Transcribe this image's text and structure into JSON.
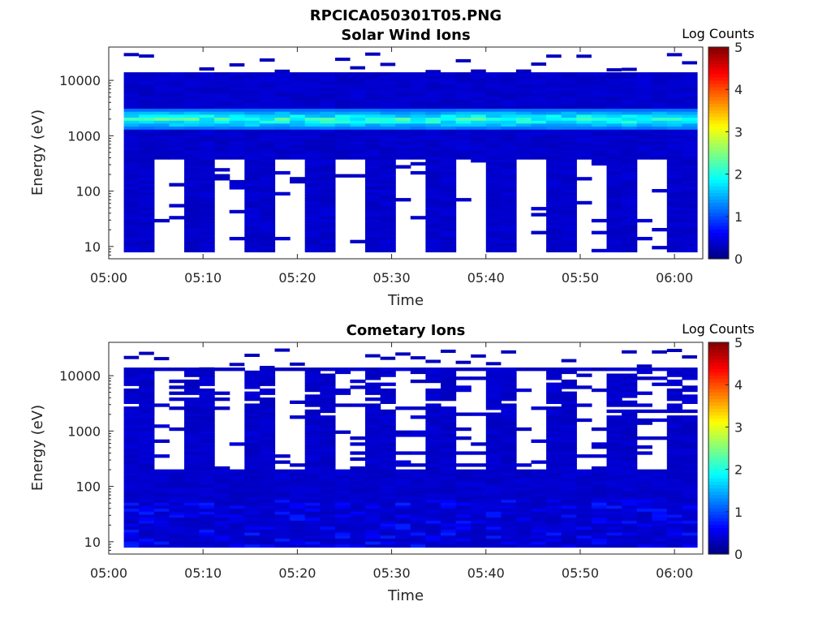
{
  "figure_title": "RPCICA050301T05.PNG",
  "chart_data": [
    {
      "type": "heatmap",
      "title": "Solar Wind Ions",
      "xlabel": "Time",
      "ylabel": "Energy (eV)",
      "y_scale": "log",
      "ylim": [
        6,
        40000
      ],
      "xlim": [
        "05:00",
        "06:03"
      ],
      "x_ticks": [
        "05:00",
        "05:10",
        "05:20",
        "05:30",
        "05:40",
        "05:50",
        "06:00"
      ],
      "y_ticks": [
        "10",
        "100",
        "1000",
        "10000"
      ],
      "colorbar": {
        "label": "Log Counts",
        "min": 0,
        "max": 5,
        "ticks": [
          "0",
          "1",
          "2",
          "3",
          "4",
          "5"
        ],
        "colormap": "jet"
      },
      "background_level": 0.3,
      "peak_energy_eV": 2000,
      "peak_level_range": [
        1.1,
        1.9
      ],
      "low_energy_gap_cycle": "empty bins below ~400 eV on alternating sweeps"
    },
    {
      "type": "heatmap",
      "title": "Cometary Ions",
      "xlabel": "Time",
      "ylabel": "Energy (eV)",
      "y_scale": "log",
      "ylim": [
        6,
        40000
      ],
      "xlim": [
        "05:00",
        "06:03"
      ],
      "x_ticks": [
        "05:00",
        "05:10",
        "05:20",
        "05:30",
        "05:40",
        "05:50",
        "06:00"
      ],
      "y_ticks": [
        "10",
        "100",
        "1000",
        "10000"
      ],
      "colorbar": {
        "label": "Log Counts",
        "min": 0,
        "max": 5,
        "ticks": [
          "0",
          "1",
          "2",
          "3",
          "4",
          "5"
        ],
        "colormap": "jet"
      },
      "background_level": 0.3,
      "peak_level_range": [
        0.4,
        0.8
      ],
      "low_energy_gap_cycle": "empty bins between ~200 and ~14000 eV on alternating sweeps"
    }
  ]
}
